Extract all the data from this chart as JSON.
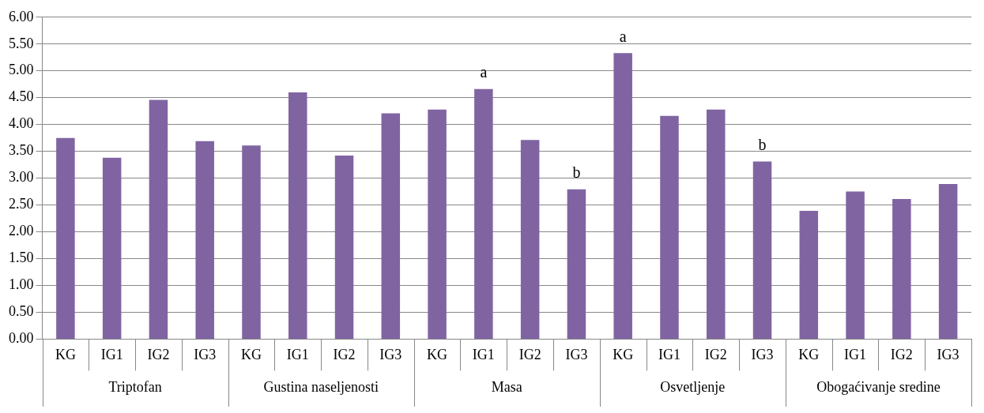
{
  "chart_data": {
    "type": "bar",
    "categories": [
      "KG",
      "IG1",
      "IG2",
      "IG3",
      "KG",
      "IG1",
      "IG2",
      "IG3",
      "KG",
      "IG1",
      "IG2",
      "IG3",
      "KG",
      "IG1",
      "IG2",
      "IG3",
      "KG",
      "IG1",
      "IG2",
      "IG3"
    ],
    "values": [
      3.75,
      3.38,
      4.46,
      3.69,
      3.61,
      4.6,
      3.42,
      4.21,
      4.28,
      4.66,
      3.71,
      2.79,
      5.33,
      4.16,
      4.28,
      3.31,
      2.39,
      2.75,
      2.61,
      2.89
    ],
    "value_labels": [
      null,
      null,
      null,
      null,
      null,
      null,
      null,
      null,
      null,
      "a",
      null,
      "b",
      "a",
      null,
      null,
      "b",
      null,
      null,
      null,
      null
    ],
    "color": "#8064a2",
    "annotations": [
      "Triptofan",
      "Gustina naseljenosti",
      "Masa",
      "Osvetljenje",
      "Obogaćivanje sredine"
    ],
    "ylim": [
      0,
      6
    ],
    "yticks": [
      {
        "value": 0,
        "label": "0.00"
      },
      {
        "value": 0.5,
        "label": "0.50"
      },
      {
        "value": 1,
        "label": "1.00"
      },
      {
        "value": 1.5,
        "label": "1.50"
      },
      {
        "value": 2,
        "label": "2.00"
      },
      {
        "value": 2.5,
        "label": "2.50"
      },
      {
        "value": 3,
        "label": "3.00"
      },
      {
        "value": 3.5,
        "label": "3.50"
      },
      {
        "value": 4,
        "label": "4.00"
      },
      {
        "value": 4.5,
        "label": "4.50"
      },
      {
        "value": 5,
        "label": "5.00"
      },
      {
        "value": 5.5,
        "label": "5.50"
      },
      {
        "value": 6,
        "label": "6.00"
      }
    ],
    "grid": "y",
    "legend": false
  }
}
